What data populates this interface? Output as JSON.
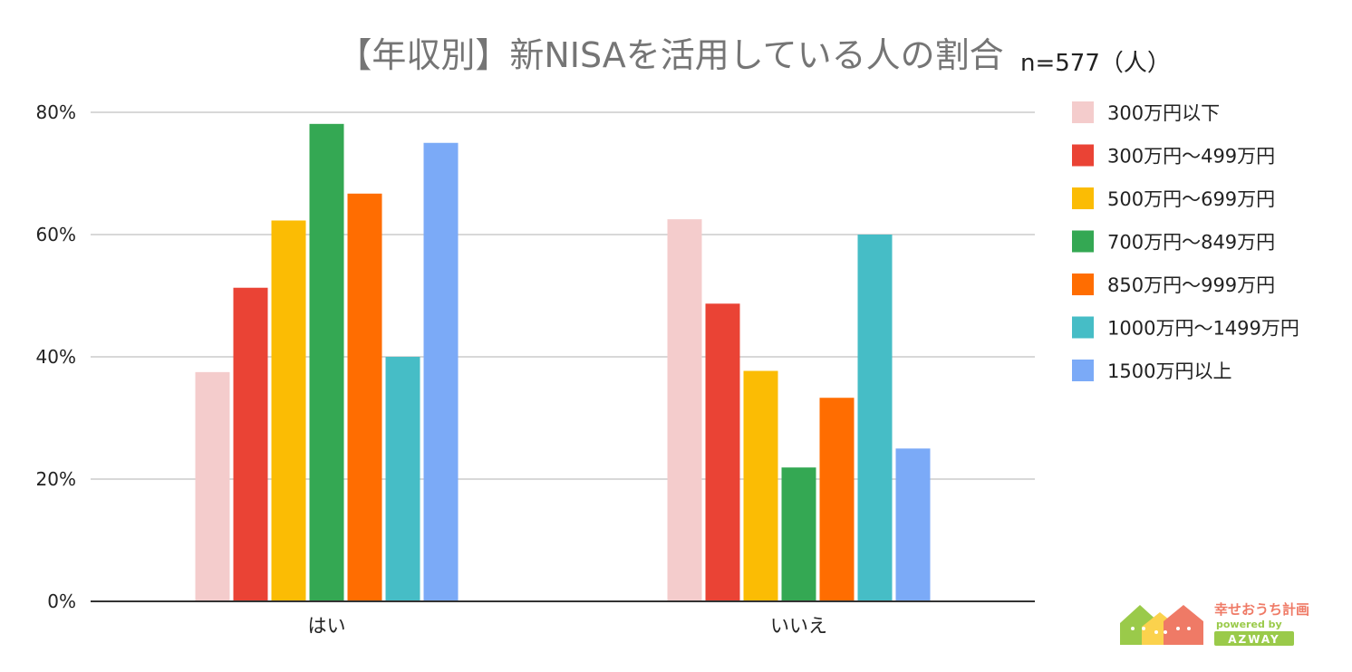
{
  "chart_data": {
    "type": "bar",
    "title": "【年収別】新NISAを活用している人の割合",
    "note": "n=577（人）",
    "xlabel": "",
    "ylabel": "",
    "categories": [
      "はい",
      "いいえ"
    ],
    "ylim": [
      0,
      80
    ],
    "yticks": [
      0,
      20,
      40,
      60,
      80
    ],
    "ytick_labels": [
      "0%",
      "20%",
      "40%",
      "60%",
      "80%"
    ],
    "grid": true,
    "legend_position": "right",
    "series": [
      {
        "name": "300万円以下",
        "color": "#f4cccc",
        "values": [
          37.5,
          62.5
        ]
      },
      {
        "name": "300万円〜499万円",
        "color": "#ea4335",
        "values": [
          51.3,
          48.7
        ]
      },
      {
        "name": "500万円〜699万円",
        "color": "#fbbc04",
        "values": [
          62.3,
          37.7
        ]
      },
      {
        "name": "700万円〜849万円",
        "color": "#34a853",
        "values": [
          78.1,
          21.9
        ]
      },
      {
        "name": "850万円〜999万円",
        "color": "#ff6d01",
        "values": [
          66.7,
          33.3
        ]
      },
      {
        "name": "1000万円〜1499万円",
        "color": "#46bdc6",
        "values": [
          40.0,
          60.0
        ]
      },
      {
        "name": "1500万円以上",
        "color": "#7baaf7",
        "values": [
          75.0,
          25.0
        ]
      }
    ]
  },
  "logo": {
    "name": "幸せおうち計画",
    "sub": "powered by",
    "badge": "AZWAY",
    "colors": {
      "pink": "#ef7a66",
      "green": "#9aca4a",
      "yellow": "#fbd24d"
    }
  }
}
